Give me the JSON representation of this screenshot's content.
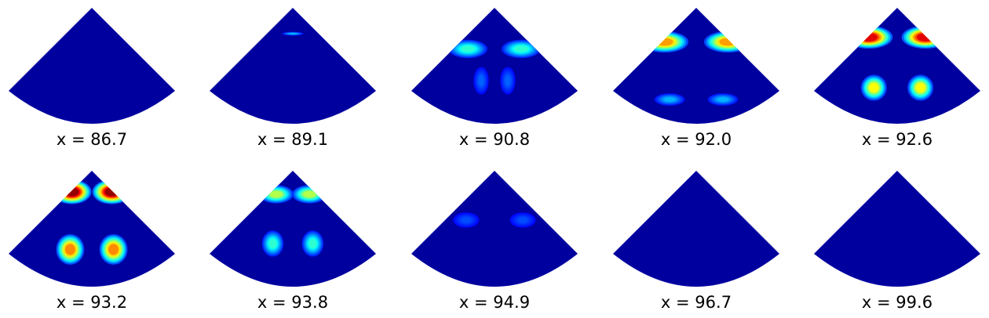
{
  "chart_data": {
    "type": "heatmap",
    "colormap": "jet",
    "layout": {
      "rows": 2,
      "cols": 5
    },
    "background_color": "#00009f",
    "panels": [
      {
        "label": "x = 86.7",
        "x": 86.7,
        "intensity": 0.0,
        "hotspots": []
      },
      {
        "label": "x = 89.1",
        "x": 89.1,
        "intensity": 0.08,
        "hotspots": [
          {
            "u": 0.5,
            "v": 0.22,
            "rx": 0.05,
            "ry": 0.012,
            "level": 0.3
          }
        ]
      },
      {
        "label": "x = 90.8",
        "x": 90.8,
        "intensity": 0.45,
        "hotspots": [
          {
            "u": 0.34,
            "v": 0.35,
            "rx": 0.09,
            "ry": 0.06,
            "level": 0.42
          },
          {
            "u": 0.66,
            "v": 0.35,
            "rx": 0.09,
            "ry": 0.06,
            "level": 0.42
          },
          {
            "u": 0.42,
            "v": 0.62,
            "rx": 0.035,
            "ry": 0.09,
            "level": 0.22
          },
          {
            "u": 0.58,
            "v": 0.62,
            "rx": 0.035,
            "ry": 0.09,
            "level": 0.22
          }
        ]
      },
      {
        "label": "x = 92.0",
        "x": 92.0,
        "intensity": 0.75,
        "hotspots": [
          {
            "u": 0.31,
            "v": 0.29,
            "rx": 0.11,
            "ry": 0.07,
            "level": 0.72
          },
          {
            "u": 0.69,
            "v": 0.29,
            "rx": 0.11,
            "ry": 0.07,
            "level": 0.72
          },
          {
            "u": 0.34,
            "v": 0.78,
            "rx": 0.07,
            "ry": 0.04,
            "level": 0.3
          },
          {
            "u": 0.66,
            "v": 0.78,
            "rx": 0.07,
            "ry": 0.04,
            "level": 0.3
          }
        ]
      },
      {
        "label": "x = 92.6",
        "x": 92.6,
        "intensity": 0.95,
        "hotspots": [
          {
            "u": 0.33,
            "v": 0.25,
            "rx": 0.11,
            "ry": 0.075,
            "level": 0.9
          },
          {
            "u": 0.67,
            "v": 0.25,
            "rx": 0.11,
            "ry": 0.075,
            "level": 0.9
          },
          {
            "u": 0.36,
            "v": 0.68,
            "rx": 0.06,
            "ry": 0.085,
            "level": 0.62
          },
          {
            "u": 0.64,
            "v": 0.68,
            "rx": 0.06,
            "ry": 0.085,
            "level": 0.62
          }
        ]
      },
      {
        "label": "x = 93.2",
        "x": 93.2,
        "intensity": 1.0,
        "hotspots": [
          {
            "u": 0.38,
            "v": 0.18,
            "rx": 0.09,
            "ry": 0.08,
            "level": 0.98
          },
          {
            "u": 0.62,
            "v": 0.18,
            "rx": 0.09,
            "ry": 0.08,
            "level": 0.98
          },
          {
            "u": 0.37,
            "v": 0.67,
            "rx": 0.065,
            "ry": 0.1,
            "level": 0.74
          },
          {
            "u": 0.63,
            "v": 0.67,
            "rx": 0.065,
            "ry": 0.1,
            "level": 0.74
          }
        ]
      },
      {
        "label": "x = 93.8",
        "x": 93.8,
        "intensity": 0.6,
        "hotspots": [
          {
            "u": 0.4,
            "v": 0.2,
            "rx": 0.08,
            "ry": 0.06,
            "level": 0.55
          },
          {
            "u": 0.6,
            "v": 0.2,
            "rx": 0.08,
            "ry": 0.06,
            "level": 0.55
          },
          {
            "u": 0.38,
            "v": 0.62,
            "rx": 0.05,
            "ry": 0.085,
            "level": 0.42
          },
          {
            "u": 0.62,
            "v": 0.62,
            "rx": 0.05,
            "ry": 0.085,
            "level": 0.42
          }
        ]
      },
      {
        "label": "x = 94.9",
        "x": 94.9,
        "intensity": 0.15,
        "hotspots": [
          {
            "u": 0.33,
            "v": 0.42,
            "rx": 0.06,
            "ry": 0.05,
            "level": 0.2
          },
          {
            "u": 0.67,
            "v": 0.42,
            "rx": 0.06,
            "ry": 0.05,
            "level": 0.2
          }
        ]
      },
      {
        "label": "x = 96.7",
        "x": 96.7,
        "intensity": 0.0,
        "hotspots": []
      },
      {
        "label": "x = 99.6",
        "x": 99.6,
        "intensity": 0.0,
        "hotspots": []
      }
    ]
  }
}
